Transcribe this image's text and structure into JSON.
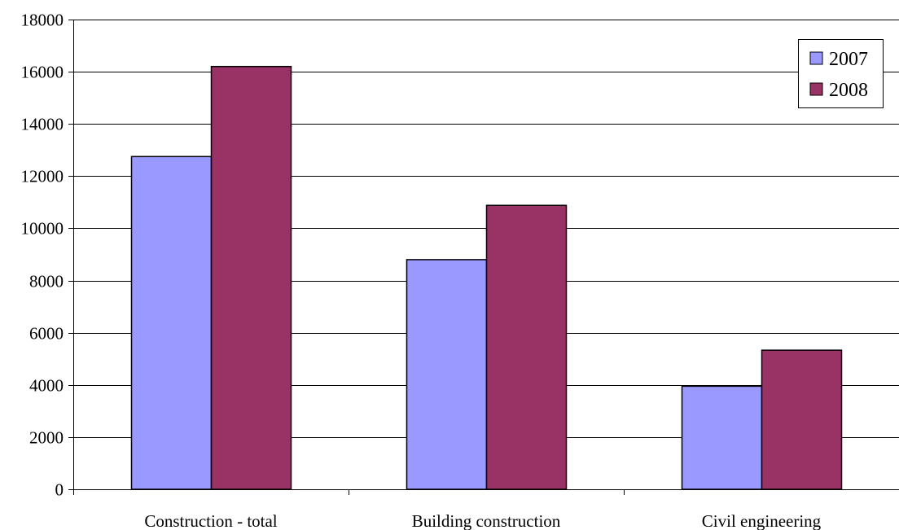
{
  "chart_data": {
    "type": "bar",
    "title": "",
    "xlabel": "",
    "ylabel": "",
    "categories": [
      "Construction - total",
      "Building construction",
      "Civil engineering"
    ],
    "series": [
      {
        "name": "2007",
        "color": "#9999ff",
        "values": [
          12750,
          8800,
          3950
        ]
      },
      {
        "name": "2008",
        "color": "#993366",
        "values": [
          16200,
          10880,
          5330
        ]
      }
    ],
    "ylim": [
      0,
      18000
    ],
    "yticks": [
      "0",
      "2000",
      "4000",
      "6000",
      "8000",
      "10000",
      "12000",
      "14000",
      "16000",
      "18000"
    ],
    "grid": true,
    "legend_position": "top-right"
  }
}
